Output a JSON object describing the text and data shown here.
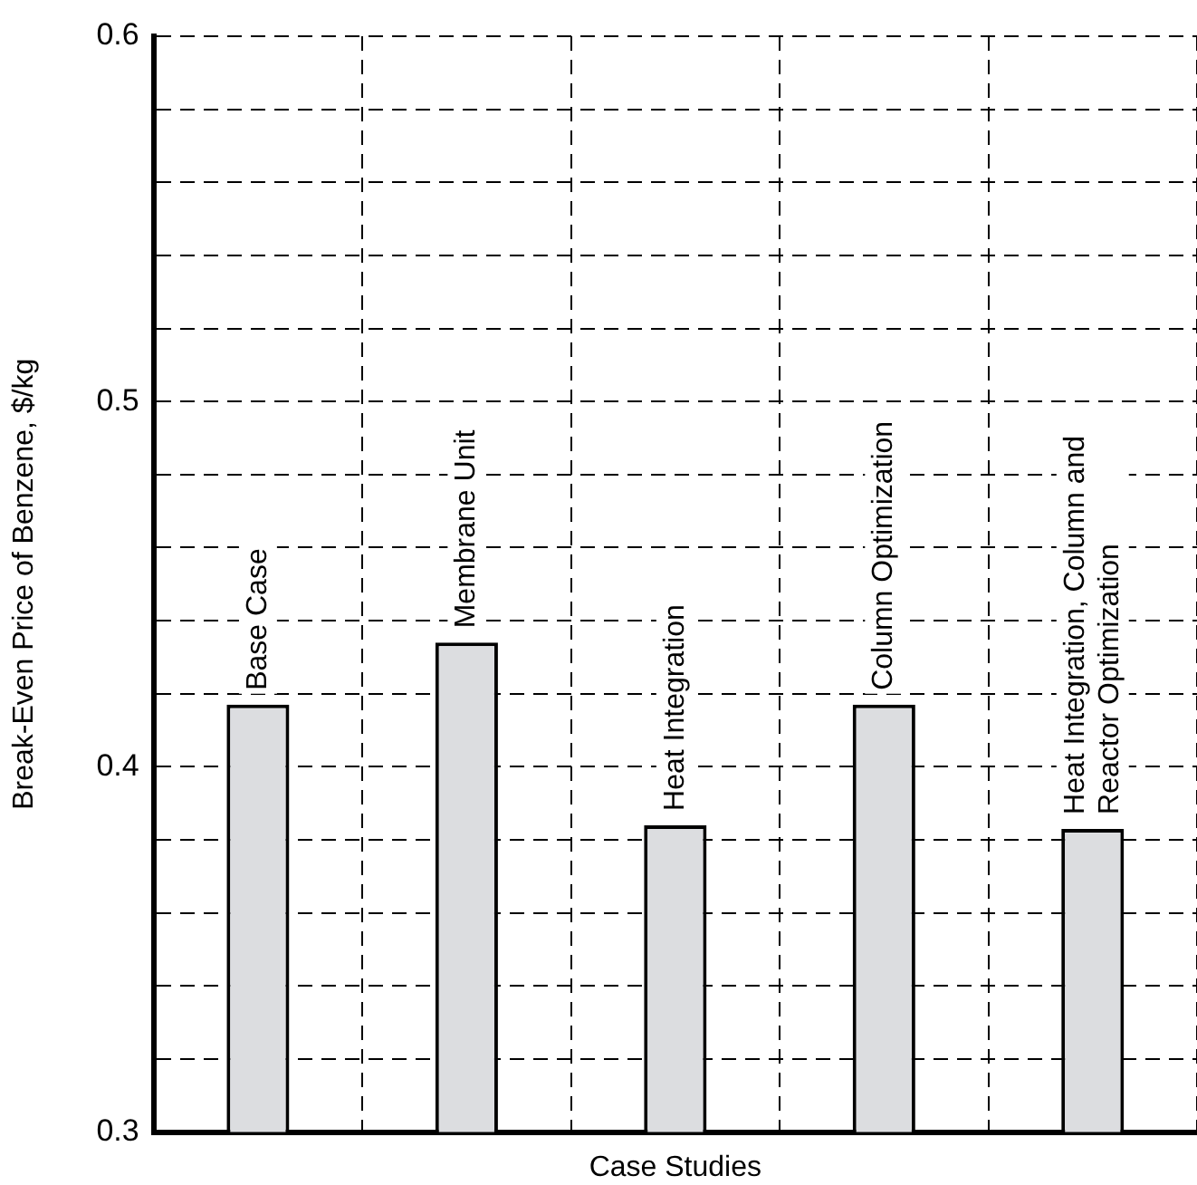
{
  "chart_data": {
    "type": "bar",
    "xlabel": "Case Studies",
    "ylabel": "Break-Even Price of Benzene, $/kg",
    "categories": [
      "Base Case",
      "Membrane Unit",
      "Heat Integration",
      "Column Optimization",
      "Heat Integration, Column and\nReactor Optimization"
    ],
    "values": [
      0.417,
      0.434,
      0.384,
      0.417,
      0.383
    ],
    "color": "#dcdde0",
    "ylim": [
      0.3,
      0.6
    ],
    "yticks": [
      0.3,
      {
        "value": 0.32,
        "label": null
      },
      {
        "value": 0.34,
        "label": null
      },
      {
        "value": 0.36,
        "label": null
      },
      {
        "value": 0.38,
        "label": null
      },
      0.4,
      {
        "value": 0.42,
        "label": null
      },
      {
        "value": 0.44,
        "label": null
      },
      {
        "value": 0.46,
        "label": null
      },
      {
        "value": 0.48,
        "label": null
      },
      0.5,
      {
        "value": 0.52,
        "label": null
      },
      {
        "value": 0.54,
        "label": null
      },
      {
        "value": 0.56,
        "label": null
      },
      {
        "value": 0.58,
        "label": null
      },
      0.6
    ],
    "grid": true,
    "legend": false
  }
}
